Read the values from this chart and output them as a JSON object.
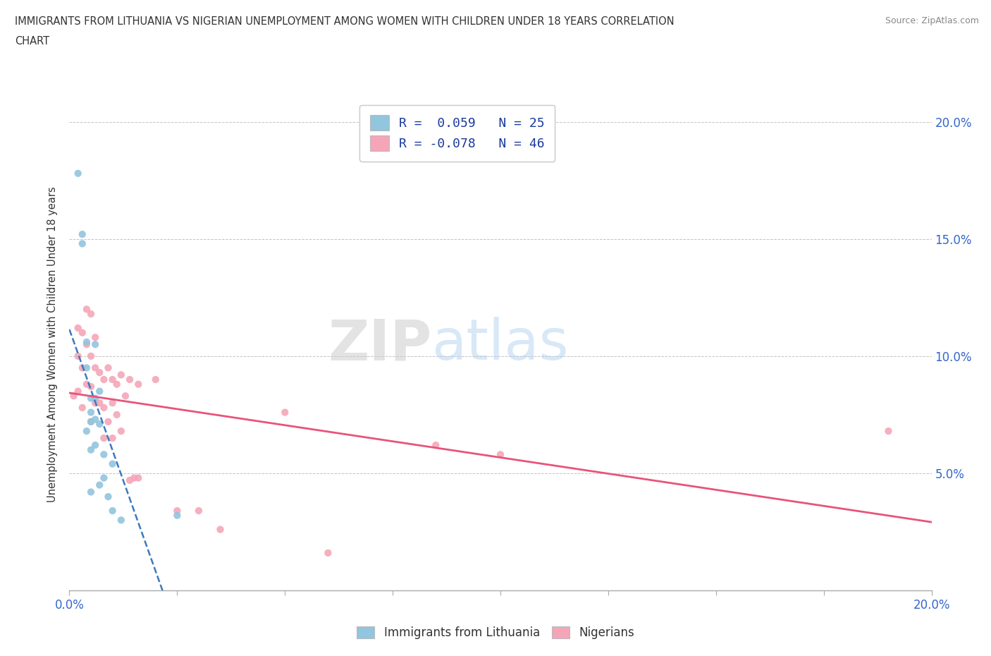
{
  "title_line1": "IMMIGRANTS FROM LITHUANIA VS NIGERIAN UNEMPLOYMENT AMONG WOMEN WITH CHILDREN UNDER 18 YEARS CORRELATION",
  "title_line2": "CHART",
  "source": "Source: ZipAtlas.com",
  "ylabel": "Unemployment Among Women with Children Under 18 years",
  "xmin": 0.0,
  "xmax": 0.2,
  "ymin": 0.0,
  "ymax": 0.21,
  "ytick_positions": [
    0.05,
    0.1,
    0.15,
    0.2
  ],
  "ytick_labels": [
    "5.0%",
    "10.0%",
    "15.0%",
    "20.0%"
  ],
  "xtick_positions": [
    0.0,
    0.025,
    0.05,
    0.075,
    0.1,
    0.125,
    0.15,
    0.175,
    0.2
  ],
  "xtick_labels": [
    "0.0%",
    "",
    "",
    "",
    "",
    "",
    "",
    "",
    "20.0%"
  ],
  "blue_color": "#92c5de",
  "pink_color": "#f4a6b8",
  "trend_blue_color": "#3a7abf",
  "trend_pink_color": "#e8547a",
  "watermark_zip": "ZIP",
  "watermark_atlas": "atlas",
  "blue_scatter_x": [
    0.002,
    0.003,
    0.003,
    0.004,
    0.004,
    0.004,
    0.005,
    0.005,
    0.005,
    0.005,
    0.005,
    0.006,
    0.006,
    0.006,
    0.006,
    0.007,
    0.007,
    0.007,
    0.008,
    0.008,
    0.009,
    0.01,
    0.01,
    0.012,
    0.025
  ],
  "blue_scatter_y": [
    0.178,
    0.152,
    0.148,
    0.106,
    0.095,
    0.068,
    0.082,
    0.076,
    0.072,
    0.06,
    0.042,
    0.105,
    0.082,
    0.073,
    0.062,
    0.085,
    0.071,
    0.045,
    0.058,
    0.048,
    0.04,
    0.054,
    0.034,
    0.03,
    0.032
  ],
  "pink_scatter_x": [
    0.001,
    0.002,
    0.002,
    0.002,
    0.003,
    0.003,
    0.003,
    0.004,
    0.004,
    0.004,
    0.005,
    0.005,
    0.005,
    0.005,
    0.006,
    0.006,
    0.006,
    0.007,
    0.007,
    0.008,
    0.008,
    0.008,
    0.009,
    0.009,
    0.01,
    0.01,
    0.01,
    0.011,
    0.011,
    0.012,
    0.012,
    0.013,
    0.014,
    0.014,
    0.015,
    0.016,
    0.016,
    0.02,
    0.025,
    0.03,
    0.035,
    0.05,
    0.06,
    0.085,
    0.1,
    0.19
  ],
  "pink_scatter_y": [
    0.083,
    0.112,
    0.1,
    0.085,
    0.11,
    0.095,
    0.078,
    0.12,
    0.105,
    0.088,
    0.118,
    0.1,
    0.087,
    0.072,
    0.108,
    0.095,
    0.08,
    0.093,
    0.08,
    0.09,
    0.078,
    0.065,
    0.095,
    0.072,
    0.09,
    0.08,
    0.065,
    0.088,
    0.075,
    0.092,
    0.068,
    0.083,
    0.09,
    0.047,
    0.048,
    0.088,
    0.048,
    0.09,
    0.034,
    0.034,
    0.026,
    0.076,
    0.016,
    0.062,
    0.058,
    0.068
  ],
  "legend_label1": "R =  0.059   N = 25",
  "legend_label2": "R = -0.078   N = 46",
  "bottom_label1": "Immigrants from Lithuania",
  "bottom_label2": "Nigerians"
}
